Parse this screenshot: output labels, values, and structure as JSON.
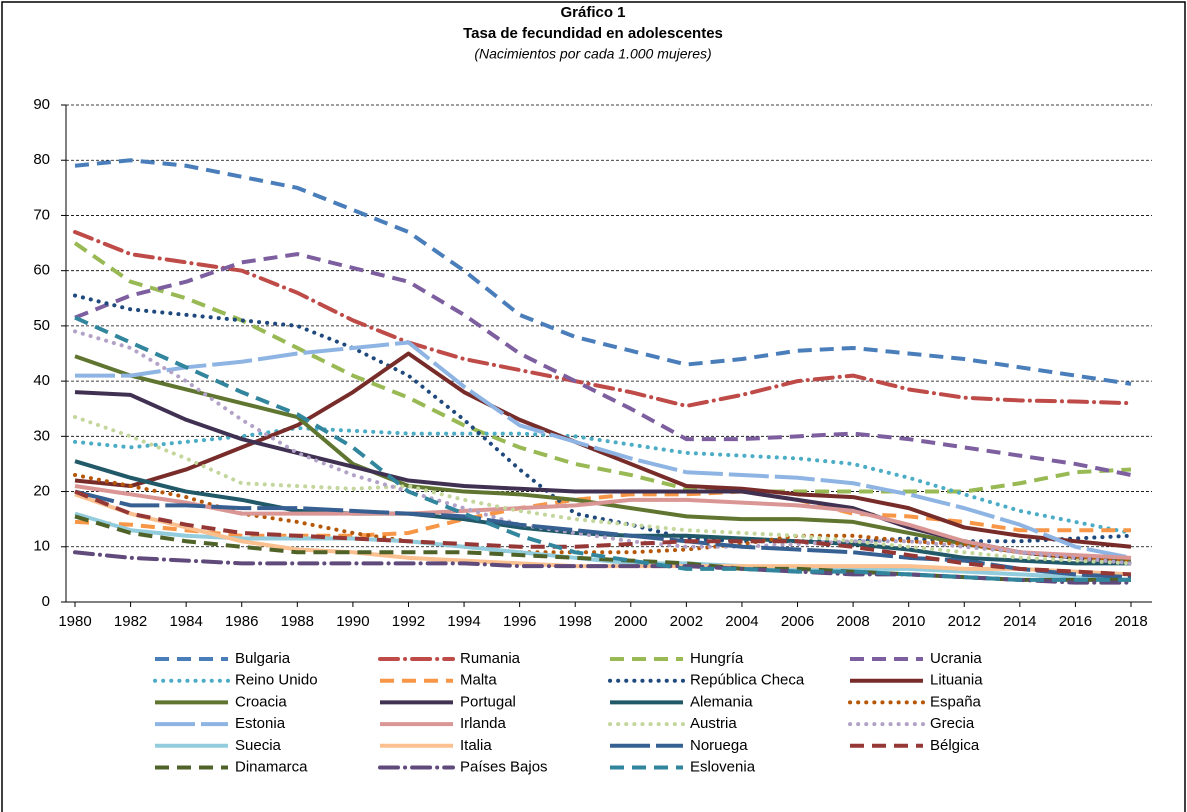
{
  "chart_data": {
    "type": "line",
    "title": "Gráfico 1",
    "subtitle": "Tasa de fecundidad en adolescentes",
    "note": "(Nacimientos por cada 1.000 mujeres)",
    "x": [
      1980,
      1982,
      1984,
      1986,
      1988,
      1990,
      1992,
      1994,
      1996,
      1998,
      2000,
      2002,
      2004,
      2006,
      2008,
      2010,
      2012,
      2014,
      2016,
      2018
    ],
    "xlim": [
      1980,
      2018
    ],
    "xticks": [
      1980,
      1982,
      1984,
      1986,
      1988,
      1990,
      1992,
      1994,
      1996,
      1998,
      2000,
      2002,
      2004,
      2006,
      2008,
      2010,
      2012,
      2014,
      2016,
      2018
    ],
    "ylim": [
      0,
      90
    ],
    "yticks": [
      0,
      10,
      20,
      30,
      40,
      50,
      60,
      70,
      80,
      90
    ],
    "grid": true,
    "legend": "bottom",
    "series": [
      {
        "name": "Bulgaria",
        "color": "#4a7ebb",
        "style": "dash",
        "values": [
          79,
          80,
          79,
          77,
          75,
          71,
          67,
          60,
          52,
          48,
          45.5,
          43,
          44,
          45.5,
          46,
          45,
          44,
          42.5,
          41,
          39.5
        ]
      },
      {
        "name": "Rumania",
        "color": "#be4b48",
        "style": "dashdot",
        "values": [
          67,
          63,
          61.5,
          60,
          56,
          51,
          47,
          44,
          42,
          40,
          38,
          35.5,
          37.5,
          40,
          41,
          38.5,
          37,
          36.5,
          36.3,
          36
        ]
      },
      {
        "name": "Hungría",
        "color": "#98b954",
        "style": "dash",
        "values": [
          65,
          58,
          55,
          51,
          46,
          41,
          37,
          32,
          28,
          25,
          23,
          20.5,
          20,
          20,
          20,
          20,
          20,
          21.5,
          23.5,
          24
        ]
      },
      {
        "name": "Ucrania",
        "color": "#7d5fa0",
        "style": "dash",
        "values": [
          51.5,
          55.5,
          58,
          61.5,
          63,
          60.5,
          58,
          52,
          45,
          40,
          35,
          29.5,
          29.5,
          30,
          30.5,
          29.5,
          28,
          26.5,
          25,
          23
        ]
      },
      {
        "name": "Reino Unido",
        "color": "#4bacc6",
        "style": "dot",
        "values": [
          29,
          28,
          29,
          30,
          31.5,
          31,
          30.5,
          30.5,
          30.5,
          30,
          28.5,
          27,
          26.5,
          26,
          25,
          22.5,
          19.5,
          16.5,
          14.5,
          12.5
        ]
      },
      {
        "name": "Malta",
        "color": "#f79646",
        "style": "dash",
        "values": [
          14.5,
          14,
          13,
          12,
          12,
          12,
          12.5,
          15,
          17,
          18.5,
          19.5,
          19.5,
          20,
          18.5,
          16,
          15.5,
          14.5,
          13,
          13,
          13
        ]
      },
      {
        "name": "República Checa",
        "color": "#1f497d",
        "style": "dot",
        "values": [
          55.5,
          53,
          52,
          51,
          50,
          46,
          41,
          33,
          24,
          16,
          14,
          11.5,
          11,
          11,
          11,
          11.5,
          11,
          11,
          11.5,
          12
        ]
      },
      {
        "name": "Lituania",
        "color": "#772c2a",
        "style": "solid",
        "values": [
          22,
          21,
          24,
          28,
          32,
          38,
          45,
          38,
          33,
          29,
          25,
          21,
          20.5,
          19.5,
          19,
          17,
          13.5,
          12,
          11,
          10
        ]
      },
      {
        "name": "Croacia",
        "color": "#5f7530",
        "style": "solid",
        "values": [
          44.5,
          41,
          38.5,
          36,
          33.5,
          25,
          21,
          20,
          19.5,
          18.5,
          17,
          15.5,
          15,
          15,
          14.5,
          12.5,
          10.5,
          9,
          8,
          7.5
        ]
      },
      {
        "name": "Portugal",
        "color": "#403152",
        "style": "solid",
        "values": [
          38,
          37.5,
          33,
          29.5,
          27,
          24.5,
          22,
          21,
          20.5,
          20,
          20,
          20,
          20,
          18.5,
          17,
          13.5,
          11,
          9,
          8,
          7
        ]
      },
      {
        "name": "Alemania",
        "color": "#215968",
        "style": "solid",
        "values": [
          25.5,
          22.5,
          20,
          18.5,
          16.5,
          16,
          16,
          15,
          13.5,
          12.5,
          12,
          12,
          11.5,
          11,
          10.5,
          9.5,
          8,
          7.5,
          7,
          7
        ]
      },
      {
        "name": "España",
        "color": "#b65708",
        "style": "dot",
        "values": [
          23,
          21,
          19,
          16,
          14.5,
          12.5,
          11,
          10,
          9,
          9,
          9,
          9.5,
          10.5,
          12,
          12,
          11,
          10.5,
          9,
          8,
          7.5
        ]
      },
      {
        "name": "Estonia",
        "color": "#8eb4e3",
        "style": "longdash",
        "values": [
          41,
          41,
          42.5,
          43.5,
          45,
          46,
          47,
          39,
          32,
          29,
          26,
          23.5,
          23,
          22.5,
          21.5,
          19.5,
          17,
          14,
          10,
          8
        ]
      },
      {
        "name": "Irlanda",
        "color": "#d99694",
        "style": "solid",
        "values": [
          21,
          19.5,
          18,
          16,
          16,
          16,
          16,
          16.5,
          17,
          17.5,
          18.5,
          18.5,
          18,
          17.5,
          16.5,
          14,
          11,
          9,
          8.5,
          8
        ]
      },
      {
        "name": "Austria",
        "color": "#c3d69b",
        "style": "dot",
        "values": [
          33.5,
          30,
          26,
          21.5,
          21,
          20.5,
          21,
          18.5,
          16.5,
          15,
          14,
          13,
          12.5,
          12,
          11,
          10,
          9,
          8,
          7.5,
          7
        ]
      },
      {
        "name": "Grecia",
        "color": "#b3a2c7",
        "style": "dot",
        "values": [
          49,
          46,
          40,
          33,
          27,
          23,
          20,
          17,
          14,
          12.5,
          11,
          10,
          10,
          10.5,
          11,
          11,
          10,
          9,
          8,
          7
        ]
      },
      {
        "name": "Suecia",
        "color": "#93cddd",
        "style": "solid",
        "values": [
          16,
          13,
          12,
          11.5,
          11.5,
          11.5,
          11,
          10,
          9,
          8,
          7,
          7,
          6.5,
          6,
          6,
          6,
          5.5,
          5,
          4.5,
          4
        ]
      },
      {
        "name": "Italia",
        "color": "#fac090",
        "style": "solid",
        "values": [
          19.5,
          16,
          13.5,
          11,
          9.5,
          9,
          8,
          7.5,
          7,
          6.5,
          6.5,
          6.5,
          6.5,
          6.5,
          6.5,
          6.5,
          6,
          6,
          5.5,
          5
        ]
      },
      {
        "name": "Noruega",
        "color": "#376092",
        "style": "longdash",
        "values": [
          20,
          17.5,
          17.5,
          17,
          17,
          16.5,
          16,
          15.5,
          14,
          13,
          12,
          11,
          10,
          9.5,
          9,
          8,
          7.5,
          6,
          5,
          4.5
        ]
      },
      {
        "name": "Bélgica",
        "color": "#953735",
        "style": "dash",
        "values": [
          20,
          16,
          14,
          12.5,
          12,
          11.5,
          11,
          10.5,
          10,
          10,
          10.5,
          11,
          11,
          11,
          10,
          8.5,
          7,
          6,
          5.5,
          5
        ]
      },
      {
        "name": "Dinamarca",
        "color": "#4f6228",
        "style": "dash",
        "values": [
          15.5,
          12.5,
          11,
          10,
          9,
          9,
          9,
          9,
          8.5,
          8,
          7.5,
          7,
          6,
          6,
          5.5,
          5,
          4.5,
          4,
          4,
          4
        ]
      },
      {
        "name": "Países Bajos",
        "color": "#604a7b",
        "style": "dashdot",
        "values": [
          9,
          8,
          7.5,
          7,
          7,
          7,
          7,
          7,
          6.5,
          6.5,
          6.5,
          6.5,
          6,
          5.5,
          5,
          5,
          4.5,
          4,
          3.5,
          3.5
        ]
      },
      {
        "name": "Eslovenia",
        "color": "#31859c",
        "style": "dash",
        "values": [
          51.5,
          47,
          42.5,
          38,
          34,
          28,
          20,
          16,
          12,
          9,
          7.5,
          6,
          6,
          5.5,
          5.5,
          5,
          4.5,
          4,
          4,
          4
        ]
      }
    ]
  }
}
